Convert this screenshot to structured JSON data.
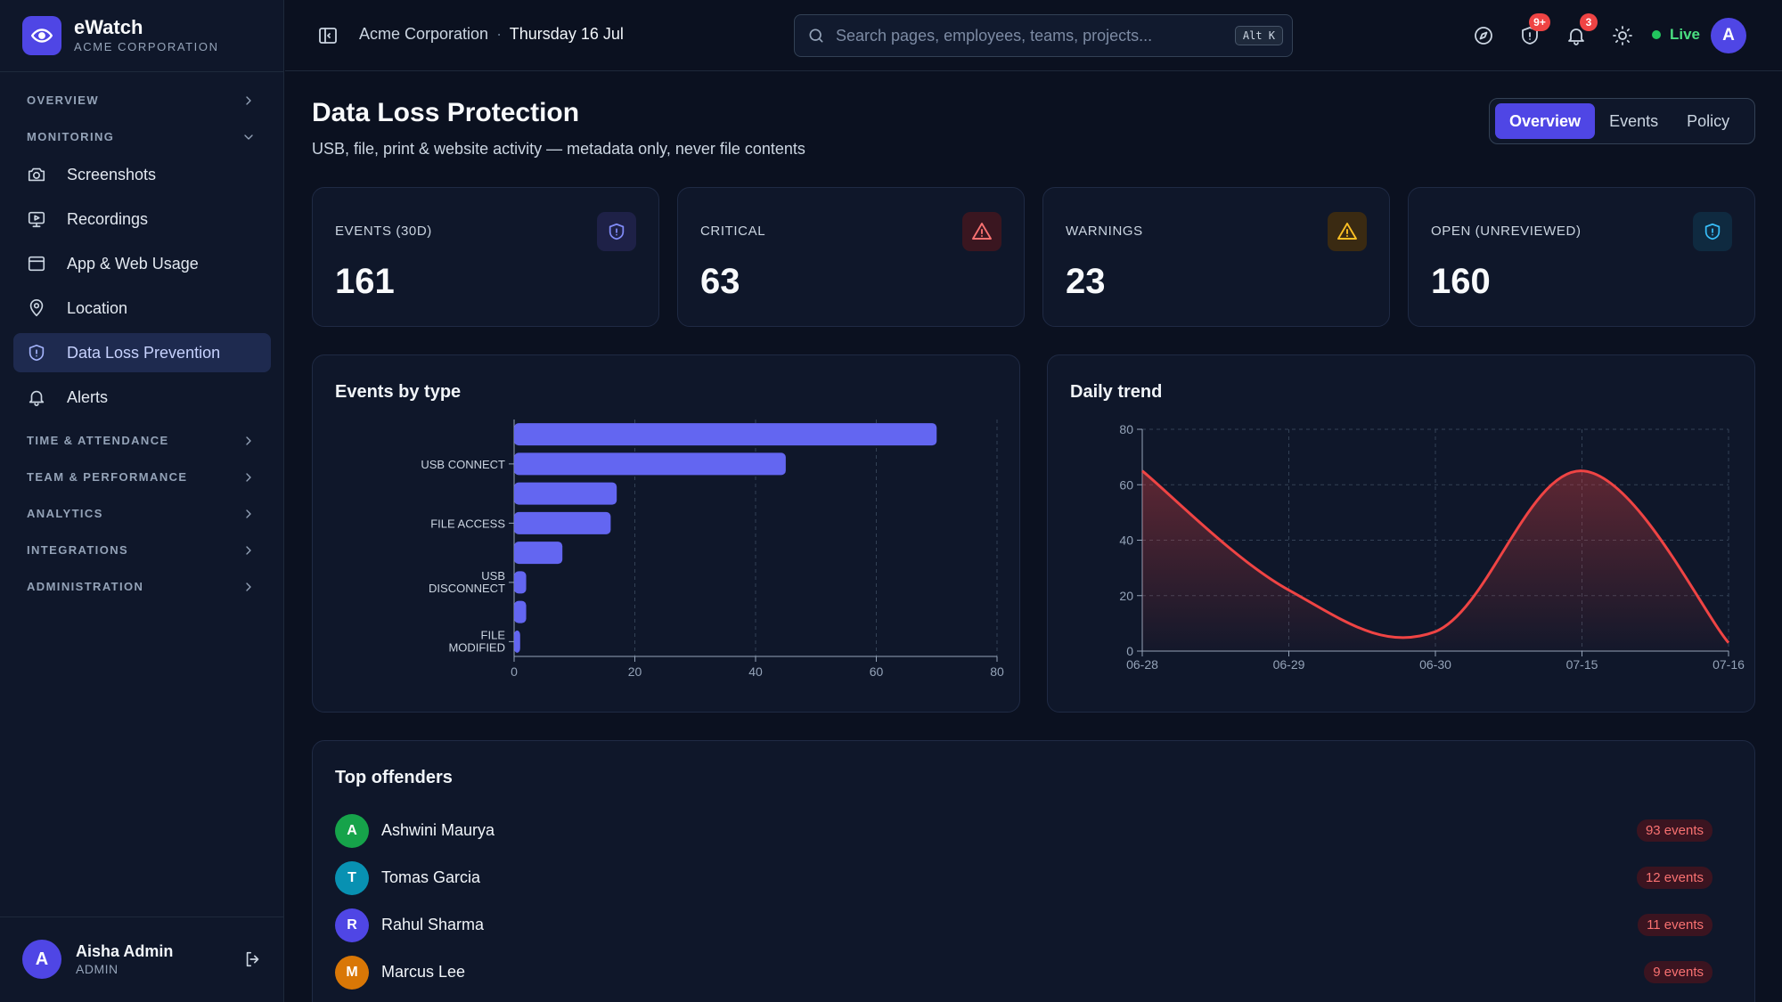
{
  "brand": {
    "name": "eWatch",
    "subtitle": "ACME CORPORATION"
  },
  "sidebar": {
    "sections": [
      {
        "label": "OVERVIEW",
        "state": "collapsed"
      },
      {
        "label": "MONITORING",
        "state": "expanded",
        "items": [
          {
            "label": "Screenshots",
            "icon": "camera-icon"
          },
          {
            "label": "Recordings",
            "icon": "monitor-play-icon"
          },
          {
            "label": "App & Web Usage",
            "icon": "browser-window-icon"
          },
          {
            "label": "Location",
            "icon": "map-pin-icon"
          },
          {
            "label": "Data Loss Prevention",
            "icon": "shield-icon",
            "active": true
          },
          {
            "label": "Alerts",
            "icon": "bell-icon"
          }
        ]
      },
      {
        "label": "TIME & ATTENDANCE",
        "state": "collapsed"
      },
      {
        "label": "TEAM & PERFORMANCE",
        "state": "collapsed"
      },
      {
        "label": "ANALYTICS",
        "state": "collapsed"
      },
      {
        "label": "INTEGRATIONS",
        "state": "collapsed"
      },
      {
        "label": "ADMINISTRATION",
        "state": "collapsed"
      }
    ],
    "user": {
      "initial": "A",
      "name": "Aisha Admin",
      "role": "ADMIN"
    }
  },
  "topbar": {
    "org": "Acme Corporation",
    "separator": "·",
    "date": "Thursday 16 Jul",
    "search": {
      "placeholder": "Search pages, employees, teams, projects...",
      "shortcut": "Alt K"
    },
    "shield_badge": "9+",
    "notifications_badge": "3",
    "live_label": "Live",
    "avatar_initial": "A"
  },
  "page": {
    "title": "Data Loss Protection",
    "subtitle": "USB, file, print & website activity — metadata only, never file contents",
    "tabs": [
      {
        "label": "Overview",
        "active": true
      },
      {
        "label": "Events",
        "active": false
      },
      {
        "label": "Policy",
        "active": false
      }
    ]
  },
  "stats": [
    {
      "label": "EVENTS (30D)",
      "value": "161",
      "icon": "shield-icon",
      "color": "#818cf8",
      "bg": "#1e2147"
    },
    {
      "label": "CRITICAL",
      "value": "63",
      "icon": "alert-triangle-icon",
      "color": "#f87171",
      "bg": "#3a1620"
    },
    {
      "label": "WARNINGS",
      "value": "23",
      "icon": "alert-triangle-icon",
      "color": "#fbbf24",
      "bg": "#3a2a12"
    },
    {
      "label": "OPEN (UNREVIEWED)",
      "value": "160",
      "icon": "shield-icon",
      "color": "#38bdf8",
      "bg": "#0f2a40"
    }
  ],
  "chart_data": [
    {
      "type": "bar",
      "orientation": "horizontal",
      "title": "Events by type",
      "categories": [
        "",
        "USB CONNECT",
        "",
        "FILE ACCESS",
        "",
        "USB DISCONNECT",
        "",
        "FILE MODIFIED"
      ],
      "values": [
        70,
        45,
        17,
        16,
        8,
        2,
        2,
        1
      ],
      "xlim": [
        0,
        80
      ],
      "xticks": [
        0,
        20,
        40,
        60,
        80
      ],
      "grid": true,
      "color": "#6366f1"
    },
    {
      "type": "area",
      "title": "Daily trend",
      "x": [
        "06-28",
        "06-29",
        "06-30",
        "07-15",
        "07-16"
      ],
      "y": [
        65,
        22,
        7,
        65,
        3
      ],
      "ylim": [
        0,
        80
      ],
      "yticks": [
        0,
        20,
        40,
        60,
        80
      ],
      "grid": true,
      "color": "#ef4444"
    }
  ],
  "offenders": {
    "title": "Top offenders",
    "rows": [
      {
        "initial": "A",
        "name": "Ashwini Maurya",
        "count": "93 events",
        "color": "#16a34a"
      },
      {
        "initial": "T",
        "name": "Tomas Garcia",
        "count": "12 events",
        "color": "#0891b2"
      },
      {
        "initial": "R",
        "name": "Rahul Sharma",
        "count": "11 events",
        "color": "#4f46e5"
      },
      {
        "initial": "M",
        "name": "Marcus Lee",
        "count": "9 events",
        "color": "#d97706"
      }
    ]
  }
}
